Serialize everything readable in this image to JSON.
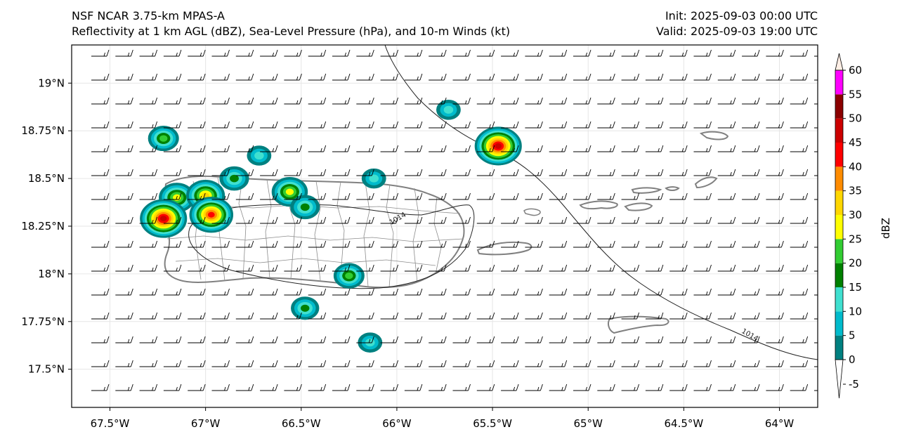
{
  "header": {
    "title_line1": "NSF NCAR 3.75-km MPAS-A",
    "title_line2": "Reflectivity at 1 km AGL (dBZ), Sea-Level Pressure (hPa), and 10-m Winds (kt)",
    "init": "Init: 2025-09-03 00:00 UTC",
    "valid": "Valid: 2025-09-03 19:00 UTC"
  },
  "map": {
    "extent": {
      "lon": [
        -67.7,
        -63.8
      ],
      "lat": [
        17.3,
        19.2
      ]
    },
    "x_ticks": [
      {
        "lon": -67.5,
        "label": "67.5°W"
      },
      {
        "lon": -67.0,
        "label": "67°W"
      },
      {
        "lon": -66.5,
        "label": "66.5°W"
      },
      {
        "lon": -66.0,
        "label": "66°W"
      },
      {
        "lon": -65.5,
        "label": "65.5°W"
      },
      {
        "lon": -65.0,
        "label": "65°W"
      },
      {
        "lon": -64.5,
        "label": "64.5°W"
      },
      {
        "lon": -64.0,
        "label": "64°W"
      }
    ],
    "y_ticks": [
      {
        "lat": 19.0,
        "label": "19°N"
      },
      {
        "lat": 18.75,
        "label": "18.75°N"
      },
      {
        "lat": 18.5,
        "label": "18.5°N"
      },
      {
        "lat": 18.25,
        "label": "18.25°N"
      },
      {
        "lat": 18.0,
        "label": "18°N"
      },
      {
        "lat": 17.75,
        "label": "17.75°N"
      },
      {
        "lat": 17.5,
        "label": "17.5°N"
      }
    ],
    "isobar_labels": [
      {
        "text": "1014",
        "lon": -65.99,
        "lat": 18.28
      },
      {
        "text": "1014",
        "lon": -64.16,
        "lat": 17.67
      }
    ],
    "reflectivity_cells": [
      {
        "lon": -67.22,
        "lat": 18.71,
        "peak": 22
      },
      {
        "lon": -67.15,
        "lat": 18.4,
        "peak": 30
      },
      {
        "lon": -67.22,
        "lat": 18.29,
        "peak": 47
      },
      {
        "lon": -67.0,
        "lat": 18.41,
        "peak": 34
      },
      {
        "lon": -66.97,
        "lat": 18.31,
        "peak": 42
      },
      {
        "lon": -66.85,
        "lat": 18.5,
        "peak": 20
      },
      {
        "lon": -66.72,
        "lat": 18.62,
        "peak": 12
      },
      {
        "lon": -66.56,
        "lat": 18.43,
        "peak": 30
      },
      {
        "lon": -66.48,
        "lat": 18.35,
        "peak": 20
      },
      {
        "lon": -66.12,
        "lat": 18.5,
        "peak": 12
      },
      {
        "lon": -66.25,
        "lat": 17.99,
        "peak": 22
      },
      {
        "lon": -66.48,
        "lat": 17.82,
        "peak": 18
      },
      {
        "lon": -66.14,
        "lat": 17.64,
        "peak": 12
      },
      {
        "lon": -65.73,
        "lat": 18.86,
        "peak": 12
      },
      {
        "lon": -65.47,
        "lat": 18.67,
        "peak": 47
      }
    ],
    "wind": {
      "speed_kt_typical": 15,
      "from_dir_deg": 90
    }
  },
  "colorbar": {
    "label": "dBZ",
    "ticks": [
      "-5",
      "0",
      "5",
      "10",
      "15",
      "20",
      "25",
      "30",
      "35",
      "40",
      "45",
      "50",
      "55",
      "60"
    ],
    "levels": [
      0,
      5,
      10,
      15,
      20,
      25,
      30,
      35,
      40,
      45,
      50,
      55,
      60
    ],
    "colors": [
      "#008080",
      "#00bbcc",
      "#40e0d0",
      "#008000",
      "#32cd32",
      "#ffff00",
      "#ffd700",
      "#ff8c00",
      "#ff0000",
      "#cc0000",
      "#8b0000",
      "#ff00ff"
    ],
    "under_color": "#ffffff",
    "over_color": "#ffeee5"
  }
}
